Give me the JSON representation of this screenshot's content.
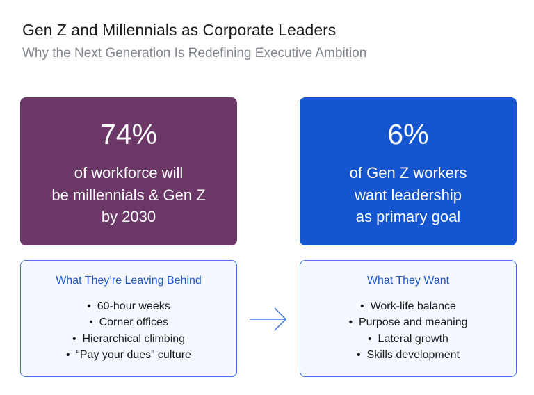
{
  "header": {
    "title": "Gen Z and Millennials as Corporate Leaders",
    "subtitle": "Why the Next Generation Is Redefining Executive Ambition"
  },
  "stats": [
    {
      "figure": "74%",
      "lines": [
        "of workforce will",
        "be millennials & Gen Z",
        "by 2030"
      ]
    },
    {
      "figure": "6%",
      "lines": [
        "of Gen Z workers",
        "want leadership",
        "as primary goal"
      ]
    }
  ],
  "lists": [
    {
      "heading": "What They’re Leaving Behind",
      "items": [
        "60-hour weeks",
        "Corner offices",
        "Hierarchical climbing",
        "“Pay your dues” culture"
      ]
    },
    {
      "heading": "What They Want",
      "items": [
        "Work-life balance",
        "Purpose and meaning",
        "Lateral growth",
        "Skills development"
      ]
    }
  ]
}
